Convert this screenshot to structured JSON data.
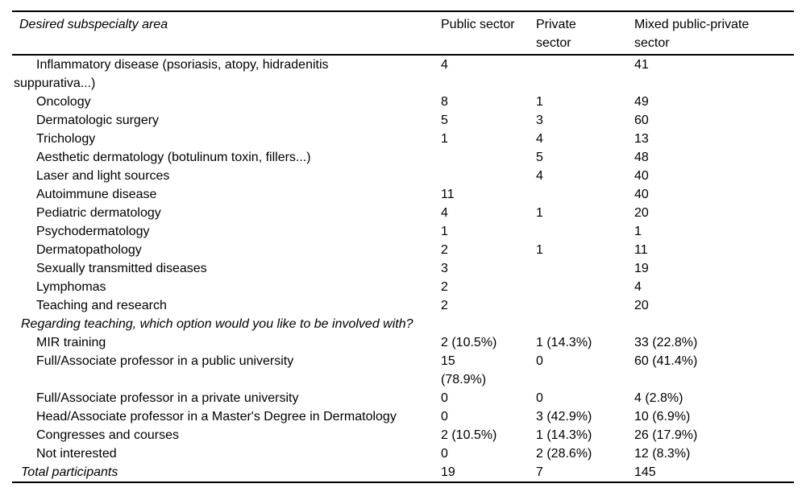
{
  "page": {
    "background": "#ffffff",
    "text_color": "#000000",
    "rule_color": "#000000"
  },
  "table": {
    "columns": [
      {
        "label": "Desired subspecialty area"
      },
      {
        "label": "Public sector"
      },
      {
        "label": "Private\nsector"
      },
      {
        "label": "Mixed public-private\nsector"
      }
    ],
    "rows": [
      {
        "type": "item",
        "label": "Inflammatory disease (psoriasis, atopy, hidradenitis\nsuppurativa...)",
        "public": "4",
        "private": "",
        "mixed": "41"
      },
      {
        "type": "item",
        "label": "Oncology",
        "public": "8",
        "private": "1",
        "mixed": "49"
      },
      {
        "type": "item",
        "label": "Dermatologic surgery",
        "public": "5",
        "private": "3",
        "mixed": "60"
      },
      {
        "type": "item",
        "label": "Trichology",
        "public": "1",
        "private": "4",
        "mixed": "13"
      },
      {
        "type": "item",
        "label": "Aesthetic dermatology (botulinum toxin, fillers...)",
        "public": "",
        "private": "5",
        "mixed": "48"
      },
      {
        "type": "item",
        "label": "Laser and light sources",
        "public": "",
        "private": "4",
        "mixed": "40"
      },
      {
        "type": "item",
        "label": "Autoimmune disease",
        "public": "11",
        "private": "",
        "mixed": "40"
      },
      {
        "type": "item",
        "label": "Pediatric dermatology",
        "public": "4",
        "private": "1",
        "mixed": "20"
      },
      {
        "type": "item",
        "label": "Psychodermatology",
        "public": "1",
        "private": "",
        "mixed": "1"
      },
      {
        "type": "item",
        "label": "Dermatopathology",
        "public": "2",
        "private": "1",
        "mixed": "11"
      },
      {
        "type": "item",
        "label": "Sexually transmitted diseases",
        "public": "3",
        "private": "",
        "mixed": "19"
      },
      {
        "type": "item",
        "label": "Lymphomas",
        "public": "2",
        "private": "",
        "mixed": "4"
      },
      {
        "type": "item",
        "label": "Teaching and research",
        "public": "2",
        "private": "",
        "mixed": "20"
      },
      {
        "type": "section",
        "label": "Regarding teaching, which option would you like to be involved with?",
        "public": "",
        "private": "",
        "mixed": ""
      },
      {
        "type": "item",
        "label": "MIR training",
        "public": "2 (10.5%)",
        "private": "1 (14.3%)",
        "mixed": "33 (22.8%)"
      },
      {
        "type": "item",
        "label": "Full/Associate professor in a public university",
        "public": "15\n(78.9%)",
        "private": "0",
        "mixed": "60 (41.4%)"
      },
      {
        "type": "item",
        "label": "Full/Associate professor in a private university",
        "public": "0",
        "private": "0",
        "mixed": "4 (2.8%)"
      },
      {
        "type": "item",
        "label": "Head/Associate professor in a Master's Degree in Dermatology",
        "public": "0",
        "private": "3 (42.9%)",
        "mixed": "10 (6.9%)"
      },
      {
        "type": "item",
        "label": "Congresses and courses",
        "public": "2 (10.5%)",
        "private": "1 (14.3%)",
        "mixed": "26 (17.9%)"
      },
      {
        "type": "item",
        "label": "Not interested",
        "public": "0",
        "private": "2 (28.6%)",
        "mixed": "12 (8.3%)"
      },
      {
        "type": "total",
        "label": "Total participants",
        "public": "19",
        "private": "7",
        "mixed": "145"
      }
    ]
  }
}
